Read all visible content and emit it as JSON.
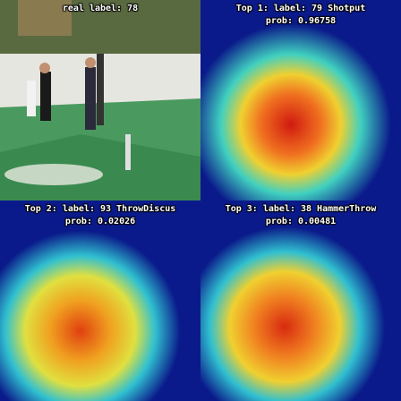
{
  "panels": [
    {
      "line1": "real label: 78",
      "line2": "",
      "type": "photo"
    },
    {
      "line1": "Top 1: label: 79 Shotput",
      "line2": "prob: 0.96758",
      "type": "heatmap"
    },
    {
      "line1": "Top 2: label: 93 ThrowDiscus",
      "line2": "prob: 0.02026",
      "type": "heatmap"
    },
    {
      "line1": "Top 3: label: 38 HammerThrow",
      "line2": "prob: 0.00481",
      "type": "heatmap"
    }
  ],
  "colors": {
    "background": "#0a1a8a",
    "hot": "#d01a10",
    "warm": "#f0c020",
    "cool": "#20c0e0"
  }
}
